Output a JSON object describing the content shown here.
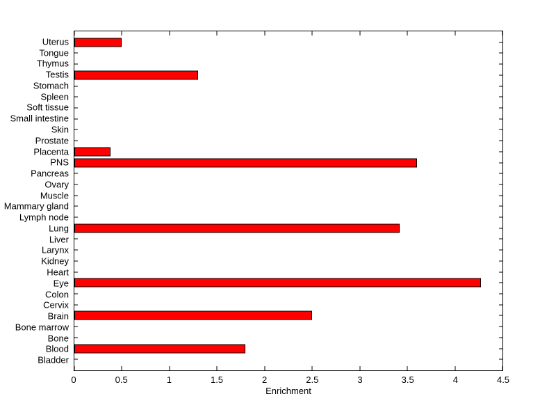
{
  "figure": {
    "background_color": "#ffffff",
    "axis_color": "#000000",
    "text_color": "#000000"
  },
  "chart_data": {
    "type": "bar",
    "orientation": "horizontal",
    "xlabel": "Enrichment",
    "ylabel": "",
    "title": "",
    "xlim": [
      0,
      4.5
    ],
    "xticks": [
      0,
      0.5,
      1,
      1.5,
      2,
      2.5,
      3,
      3.5,
      4,
      4.5
    ],
    "xtick_labels": [
      "0",
      "0.5",
      "1",
      "1.5",
      "2",
      "2.5",
      "3",
      "3.5",
      "4",
      "4.5"
    ],
    "grid": false,
    "bar_color": "#ff0000",
    "bar_edge_color": "#000000",
    "categories_order": "top-to-bottom",
    "categories": [
      "Uterus",
      "Tongue",
      "Thymus",
      "Testis",
      "Stomach",
      "Spleen",
      "Soft tissue",
      "Small intestine",
      "Skin",
      "Prostate",
      "Placenta",
      "PNS",
      "Pancreas",
      "Ovary",
      "Muscle",
      "Mammary gland",
      "Lymph node",
      "Lung",
      "Liver",
      "Larynx",
      "Kidney",
      "Heart",
      "Eye",
      "Colon",
      "Cervix",
      "Brain",
      "Bone marrow",
      "Bone",
      "Blood",
      "Bladder"
    ],
    "values": [
      0.5,
      0,
      0,
      1.3,
      0,
      0,
      0,
      0,
      0,
      0,
      0.38,
      3.6,
      0,
      0,
      0,
      0,
      0,
      3.42,
      0,
      0,
      0,
      0,
      4.27,
      0,
      0,
      2.5,
      0,
      0,
      1.8,
      0
    ]
  }
}
